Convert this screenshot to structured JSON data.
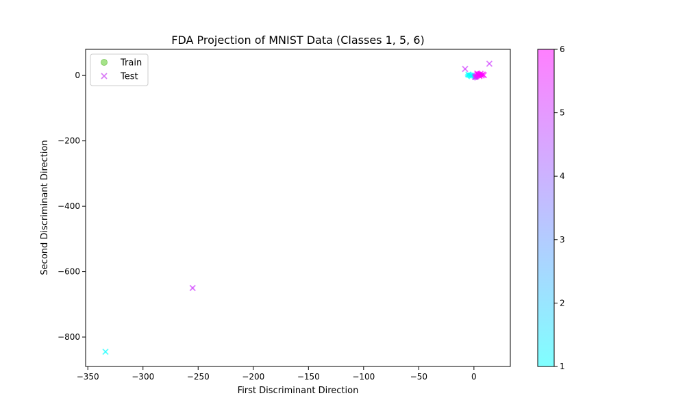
{
  "chart_data": {
    "type": "scatter",
    "title": "FDA Projection of MNIST Data (Classes 1, 5, 6)",
    "xlabel": "First Discriminant Direction",
    "ylabel": "Second Discriminant Direction",
    "xlim": [
      -352,
      33
    ],
    "ylim": [
      -890,
      80
    ],
    "xticks": [
      -350,
      -300,
      -250,
      -200,
      -150,
      -100,
      -50,
      0
    ],
    "yticks": [
      0,
      -200,
      -400,
      -600,
      -800
    ],
    "xtick_labels": [
      "−350",
      "−300",
      "−250",
      "−200",
      "−150",
      "−100",
      "−50",
      "0"
    ],
    "ytick_labels": [
      "0",
      "−200",
      "−400",
      "−600",
      "−800"
    ],
    "grid": false,
    "legend": {
      "placement": "top-left",
      "entries": [
        {
          "label": "Train",
          "marker": "circle",
          "color": "#8fdc6c"
        },
        {
          "label": "Test",
          "marker": "x",
          "color": "#d97bf5"
        }
      ]
    },
    "colorbar": {
      "min": 1,
      "max": 6,
      "ticks": [
        1,
        2,
        3,
        4,
        5,
        6
      ],
      "tick_labels": [
        "1",
        "2",
        "3",
        "4",
        "5",
        "6"
      ],
      "colormap": "cool",
      "color_low": "#00ffff",
      "color_high": "#ff00ff",
      "alpha": 0.5
    },
    "series": [
      {
        "marker": "circle",
        "points": [
          {
            "x": -2,
            "y": 1,
            "c": 1
          },
          {
            "x": -4,
            "y": -1,
            "c": 1
          },
          {
            "x": -3,
            "y": 3,
            "c": 1
          },
          {
            "x": -5,
            "y": 2,
            "c": 1
          },
          {
            "x": -1,
            "y": -3,
            "c": 1
          },
          {
            "x": -6,
            "y": 0,
            "c": 1
          },
          {
            "x": 1,
            "y": -4,
            "c": 5
          },
          {
            "x": 2,
            "y": -6,
            "c": 5
          },
          {
            "x": 0,
            "y": -2,
            "c": 5
          },
          {
            "x": 3,
            "y": -5,
            "c": 5
          },
          {
            "x": 1,
            "y": -8,
            "c": 5
          },
          {
            "x": 3,
            "y": 2,
            "c": 6
          },
          {
            "x": 5,
            "y": 4,
            "c": 6
          },
          {
            "x": 6,
            "y": 1,
            "c": 6
          },
          {
            "x": 4,
            "y": 6,
            "c": 6
          },
          {
            "x": 7,
            "y": 3,
            "c": 6
          },
          {
            "x": 2,
            "y": 5,
            "c": 6
          },
          {
            "x": 5,
            "y": -1,
            "c": 6
          }
        ]
      },
      {
        "marker": "x",
        "points": [
          {
            "x": -334,
            "y": -845,
            "c": 1
          },
          {
            "x": -255,
            "y": -650,
            "c": 5
          },
          {
            "x": 14,
            "y": 36,
            "c": 5
          },
          {
            "x": -8,
            "y": 20,
            "c": 5
          },
          {
            "x": -3,
            "y": 0,
            "c": 1
          },
          {
            "x": -5,
            "y": 3,
            "c": 1
          },
          {
            "x": -2,
            "y": -2,
            "c": 1
          },
          {
            "x": 1,
            "y": -5,
            "c": 5
          },
          {
            "x": 2,
            "y": -3,
            "c": 5
          },
          {
            "x": 4,
            "y": 2,
            "c": 6
          },
          {
            "x": 6,
            "y": 5,
            "c": 6
          },
          {
            "x": 7,
            "y": 0,
            "c": 6
          },
          {
            "x": 3,
            "y": 6,
            "c": 6
          },
          {
            "x": 8,
            "y": 3,
            "c": 6
          },
          {
            "x": 5,
            "y": -2,
            "c": 6
          },
          {
            "x": 9,
            "y": 1,
            "c": 6
          }
        ]
      }
    ]
  }
}
